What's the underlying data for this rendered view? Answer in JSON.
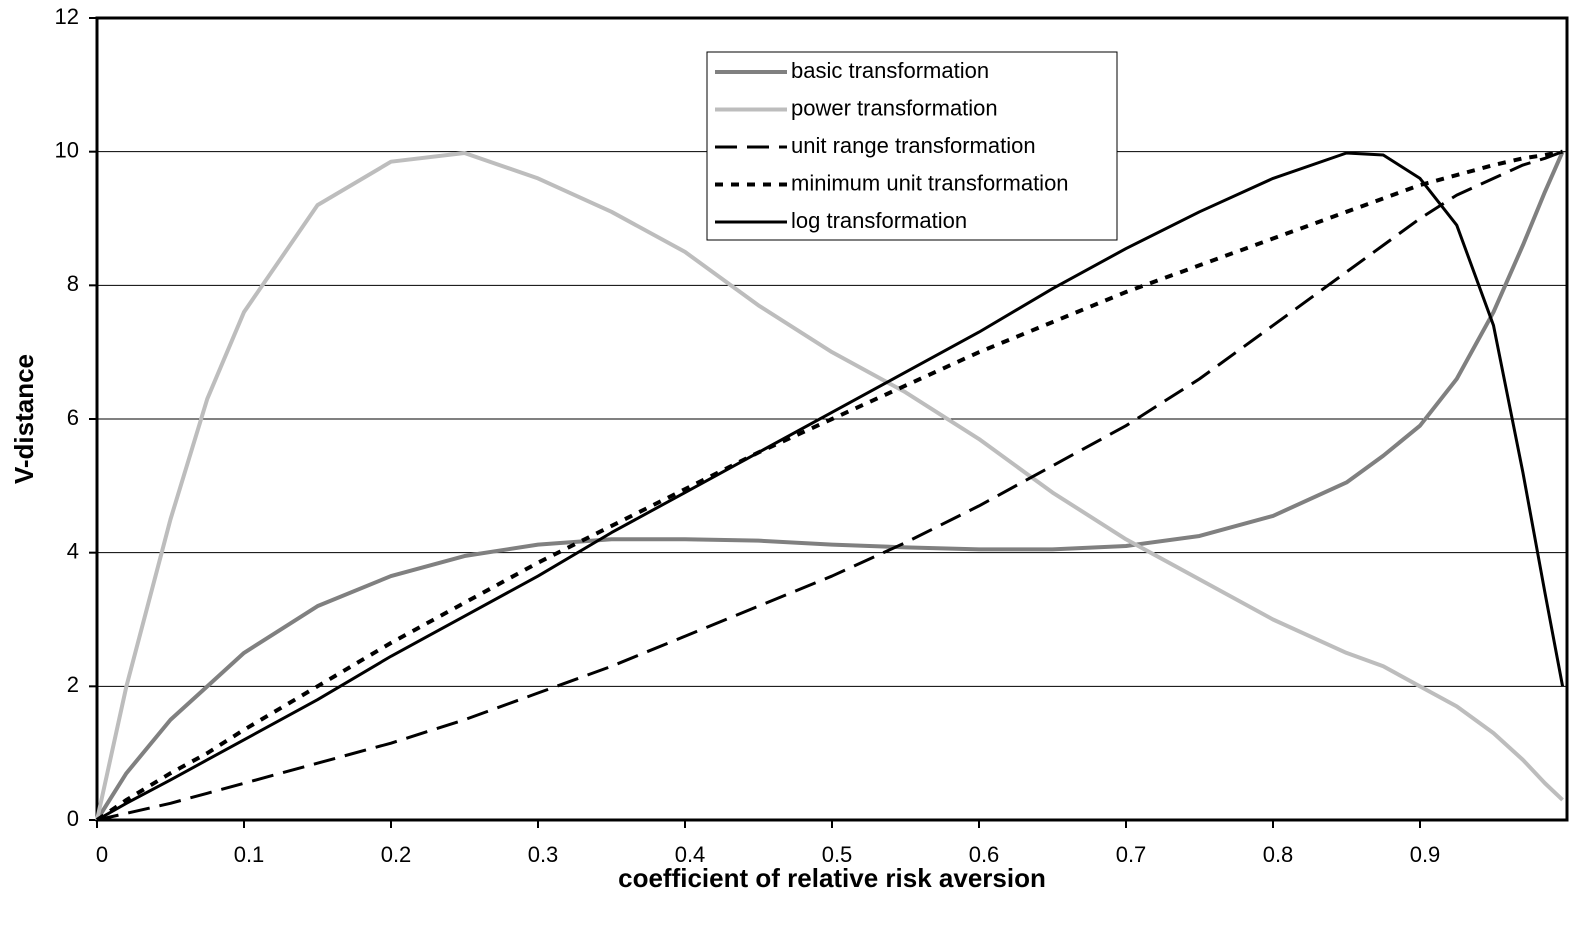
{
  "chart_data": {
    "type": "line",
    "x_label": "coefficient of relative risk aversion",
    "y_label": "V-distance",
    "x": [
      0,
      0.02,
      0.05,
      0.075,
      0.1,
      0.15,
      0.2,
      0.25,
      0.3,
      0.35,
      0.4,
      0.45,
      0.5,
      0.55,
      0.6,
      0.65,
      0.7,
      0.75,
      0.8,
      0.85,
      0.875,
      0.9,
      0.925,
      0.95,
      0.97,
      0.985,
      0.997
    ],
    "series": [
      {
        "name": "basic transformation",
        "color": "#808080",
        "dash": "solid",
        "width": 4,
        "values": [
          0,
          0.7,
          1.5,
          2.0,
          2.5,
          3.2,
          3.65,
          3.95,
          4.12,
          4.2,
          4.2,
          4.18,
          4.12,
          4.08,
          4.05,
          4.05,
          4.1,
          4.25,
          4.55,
          5.05,
          5.45,
          5.9,
          6.6,
          7.6,
          8.6,
          9.4,
          10
        ]
      },
      {
        "name": "power transformation",
        "color": "#bdbdbd",
        "dash": "solid",
        "width": 4,
        "values": [
          0,
          2.0,
          4.5,
          6.3,
          7.6,
          9.2,
          9.85,
          9.98,
          9.6,
          9.1,
          8.5,
          7.7,
          7.0,
          6.4,
          5.7,
          4.9,
          4.2,
          3.6,
          3.0,
          2.5,
          2.3,
          2.0,
          1.7,
          1.3,
          0.9,
          0.55,
          0.3
        ]
      },
      {
        "name": "unit range transformation",
        "color": "#000000",
        "dash": "dashed",
        "width": 3,
        "values": [
          0,
          0.1,
          0.25,
          0.4,
          0.55,
          0.85,
          1.15,
          1.5,
          1.9,
          2.3,
          2.75,
          3.2,
          3.65,
          4.15,
          4.7,
          5.3,
          5.9,
          6.6,
          7.4,
          8.2,
          8.6,
          9.0,
          9.35,
          9.6,
          9.8,
          9.9,
          10
        ]
      },
      {
        "name": "minimum unit transformation",
        "color": "#000000",
        "dash": "dotted",
        "width": 4,
        "values": [
          0,
          0.3,
          0.7,
          1.0,
          1.35,
          2.0,
          2.65,
          3.25,
          3.85,
          4.4,
          4.95,
          5.5,
          6.0,
          6.5,
          7.0,
          7.45,
          7.9,
          8.3,
          8.7,
          9.1,
          9.3,
          9.5,
          9.65,
          9.8,
          9.9,
          9.95,
          10
        ]
      },
      {
        "name": "log transformation",
        "color": "#000000",
        "dash": "solid",
        "width": 3,
        "values": [
          0,
          0.25,
          0.6,
          0.9,
          1.2,
          1.8,
          2.45,
          3.05,
          3.65,
          4.3,
          4.9,
          5.5,
          6.1,
          6.7,
          7.3,
          7.95,
          8.55,
          9.1,
          9.6,
          9.98,
          9.95,
          9.6,
          8.9,
          7.4,
          5.2,
          3.4,
          2.0
        ]
      }
    ],
    "xlim": [
      0,
      1
    ],
    "xticks": [
      0,
      0.1,
      0.2,
      0.3,
      0.4,
      0.5,
      0.6,
      0.7,
      0.8,
      0.9
    ],
    "ylim": [
      0,
      12
    ],
    "yticks": [
      0,
      2,
      4,
      6,
      8,
      10,
      12
    ],
    "grid": true,
    "legend": "top"
  }
}
